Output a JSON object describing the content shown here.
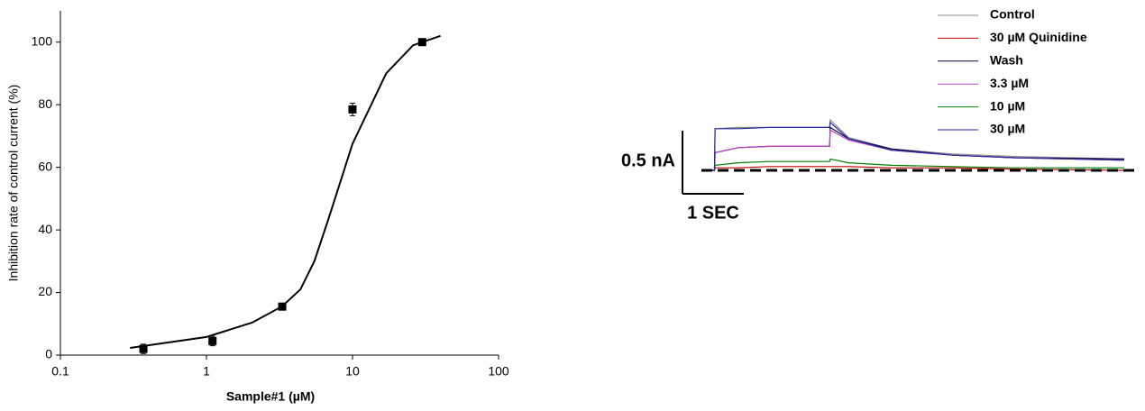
{
  "chart_data": [
    {
      "type": "scatter",
      "xlabel": "Sample#1 (µM)",
      "ylabel": "Inhibition rate of control current (%)",
      "x": [
        0.37,
        1.1,
        3.3,
        10,
        30
      ],
      "values": [
        2,
        4.5,
        15.5,
        78.5,
        100
      ],
      "errors": [
        1.5,
        1.5,
        1,
        2,
        0.5
      ],
      "fit": {
        "x": [
          0.3,
          1,
          2.06,
          3.3,
          4.4,
          5.48,
          6.9,
          10,
          17,
          26,
          40
        ],
        "values": [
          2.3,
          5.8,
          10.4,
          15.6,
          21,
          30,
          44,
          67.5,
          90,
          99,
          102
        ]
      },
      "color": "#000000",
      "xscale": "log",
      "xlim": [
        0.1,
        100
      ],
      "xticks": [
        0.1,
        1,
        10,
        100
      ],
      "ylim": [
        0,
        110
      ],
      "yticks": [
        0,
        20,
        40,
        60,
        80,
        100
      ],
      "grid": false
    },
    {
      "type": "line",
      "x": [
        0,
        0.11,
        0.12,
        0.5,
        1.0,
        1.99,
        2.0,
        2.3,
        3.0,
        4.0,
        5.0,
        6.8
      ],
      "series": [
        {
          "name": "Control",
          "color": "#8a8a8a",
          "values": [
            0,
            0,
            0.33,
            0.34,
            0.34,
            0.34,
            0.4,
            0.26,
            0.17,
            0.13,
            0.11,
            0.09
          ]
        },
        {
          "name": "30 µM Quinidine",
          "color": "#c00000",
          "values": [
            0,
            0,
            0.02,
            0.02,
            0.03,
            0.03,
            0.03,
            0.03,
            0.02,
            0.02,
            0.01,
            0.0
          ]
        },
        {
          "name": "Wash",
          "color": "#000040",
          "values": [
            0,
            0,
            0.14,
            0.18,
            0.19,
            0.19,
            0.34,
            0.25,
            0.17,
            0.12,
            0.1,
            0.09
          ]
        },
        {
          "name": "3.3 µM",
          "color": "#c040c0",
          "values": [
            0,
            0,
            0.14,
            0.18,
            0.19,
            0.19,
            0.32,
            0.24,
            0.16,
            0.12,
            0.1,
            0.08
          ]
        },
        {
          "name": "10 µM",
          "color": "#008000",
          "values": [
            0,
            0,
            0.04,
            0.06,
            0.07,
            0.07,
            0.09,
            0.06,
            0.04,
            0.03,
            0.02,
            0.02
          ]
        },
        {
          "name": "30 µM",
          "color": "#2a2aa0",
          "values": [
            0,
            0,
            0.33,
            0.33,
            0.34,
            0.34,
            0.38,
            0.25,
            0.16,
            0.12,
            0.1,
            0.08
          ]
        }
      ],
      "baseline": 0,
      "scale_bar_y": {
        "value": 0.5,
        "label": "0.5 nA"
      },
      "scale_bar_x": {
        "value": 1,
        "label": "1 SEC"
      },
      "xlim": [
        0,
        6.8
      ],
      "ylim": [
        -0.5,
        0.5
      ],
      "legend": "upper right"
    }
  ]
}
